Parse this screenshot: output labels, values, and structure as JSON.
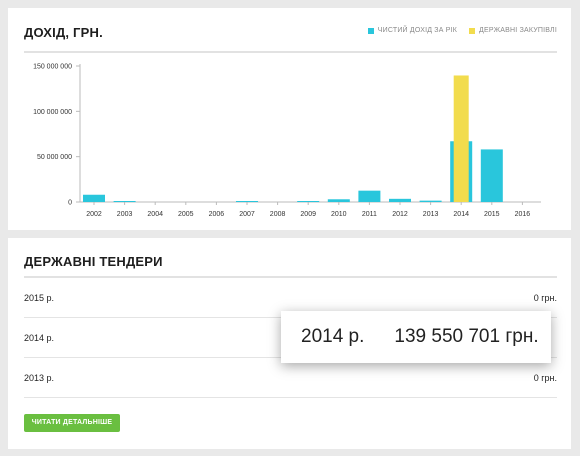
{
  "income": {
    "title": "ДОХІД, ГРН.",
    "legend": [
      {
        "label": "ЧИСТИЙ ДОХІД ЗА РІК",
        "color": "#29c6dc"
      },
      {
        "label": "ДЕРЖАВНІ ЗАКУПІВЛІ",
        "color": "#f2dc4d"
      }
    ]
  },
  "tenders": {
    "title": "ДЕРЖАВНІ ТЕНДЕРИ",
    "rows": [
      {
        "year": "2015 р.",
        "amount": "0 грн."
      },
      {
        "year": "2014 р.",
        "amount": ""
      },
      {
        "year": "2013 р.",
        "amount": "0 грн."
      }
    ],
    "button_label": "ЧИТАТИ ДЕТАЛЬНІШЕ",
    "highlight": {
      "year": "2014 р.",
      "amount": "139 550 701 грн."
    }
  },
  "chart_data": {
    "type": "bar",
    "categories": [
      "2002",
      "2003",
      "2004",
      "2005",
      "2006",
      "2007",
      "2008",
      "2009",
      "2010",
      "2011",
      "2012",
      "2013",
      "2014",
      "2015",
      "2016"
    ],
    "series": [
      {
        "name": "ЧИСТИЙ ДОХІД ЗА РІК",
        "color": "#29c6dc",
        "values": [
          8000000,
          1000000,
          0,
          0,
          0,
          500000,
          0,
          800000,
          3000000,
          12500000,
          3500000,
          1500000,
          67000000,
          58000000,
          0
        ]
      },
      {
        "name": "ДЕРЖАВНІ ЗАКУПІВЛІ",
        "color": "#f2dc4d",
        "values": [
          0,
          0,
          0,
          0,
          0,
          0,
          0,
          0,
          0,
          0,
          0,
          0,
          139550701,
          0,
          0
        ]
      }
    ],
    "yticks": [
      "150 000 000",
      "100 000 000",
      "50 000 000",
      "0"
    ],
    "ytick_values": [
      150000000,
      100000000,
      50000000,
      0
    ],
    "ylim": [
      0,
      150000000
    ],
    "legend_position": "top-right"
  }
}
